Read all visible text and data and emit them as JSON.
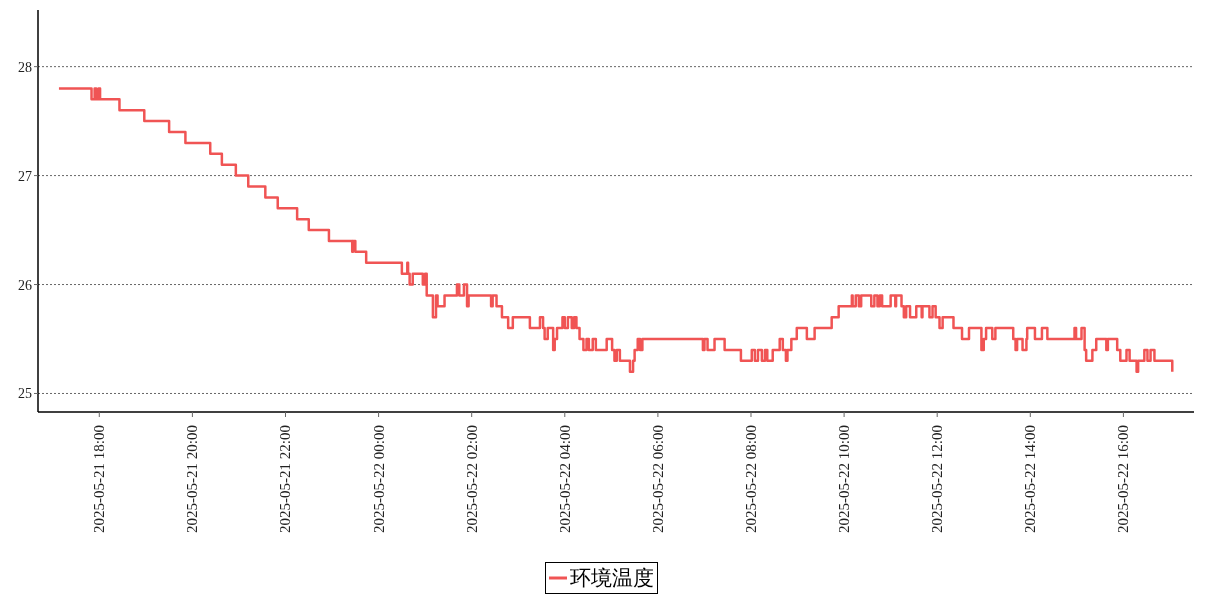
{
  "chart_data": {
    "type": "step",
    "legend": "bottom",
    "grid": "y",
    "xlim": [
      "2025-05-21T16:41",
      "2025-05-22T17:31"
    ],
    "xticks": [
      {
        "value": "2025-05-21T18:00",
        "label": "2025-05-21 18:00"
      },
      {
        "value": "2025-05-21T20:00",
        "label": "2025-05-21 20:00"
      },
      {
        "value": "2025-05-21T22:00",
        "label": "2025-05-21 22:00"
      },
      {
        "value": "2025-05-22T00:00",
        "label": "2025-05-22 00:00"
      },
      {
        "value": "2025-05-22T02:00",
        "label": "2025-05-22 02:00"
      },
      {
        "value": "2025-05-22T04:00",
        "label": "2025-05-22 04:00"
      },
      {
        "value": "2025-05-22T06:00",
        "label": "2025-05-22 06:00"
      },
      {
        "value": "2025-05-22T08:00",
        "label": "2025-05-22 08:00"
      },
      {
        "value": "2025-05-22T10:00",
        "label": "2025-05-22 10:00"
      },
      {
        "value": "2025-05-22T12:00",
        "label": "2025-05-22 12:00"
      },
      {
        "value": "2025-05-22T14:00",
        "label": "2025-05-22 14:00"
      },
      {
        "value": "2025-05-22T16:00",
        "label": "2025-05-22 16:00"
      }
    ],
    "ylim": [
      24.83,
      28.52
    ],
    "yticks": [
      25,
      26,
      27,
      28
    ],
    "series": [
      {
        "name": "环境温度",
        "color": "#f05454",
        "x": [
          "2025-05-21T17:08",
          "2025-05-21T17:50",
          "2025-05-21T17:54",
          "2025-05-21T17:56",
          "2025-05-21T17:59",
          "2025-05-21T18:01",
          "2025-05-21T18:26",
          "2025-05-21T18:58",
          "2025-05-21T19:30",
          "2025-05-21T19:51",
          "2025-05-21T20:23",
          "2025-05-21T20:38",
          "2025-05-21T20:56",
          "2025-05-21T21:12",
          "2025-05-21T21:34",
          "2025-05-21T21:50",
          "2025-05-21T22:15",
          "2025-05-21T22:30",
          "2025-05-21T22:56",
          "2025-05-21T23:26",
          "2025-05-21T23:27",
          "2025-05-21T23:30",
          "2025-05-21T23:44",
          "2025-05-22T00:30",
          "2025-05-22T00:37",
          "2025-05-22T00:38",
          "2025-05-22T00:40",
          "2025-05-22T00:44",
          "2025-05-22T00:57",
          "2025-05-22T01:00",
          "2025-05-22T01:02",
          "2025-05-22T01:10",
          "2025-05-22T01:14",
          "2025-05-22T01:16",
          "2025-05-22T01:25",
          "2025-05-22T01:41",
          "2025-05-22T01:44",
          "2025-05-22T01:50",
          "2025-05-22T01:54",
          "2025-05-22T01:56",
          "2025-05-22T02:25",
          "2025-05-22T02:27",
          "2025-05-22T02:32",
          "2025-05-22T02:39",
          "2025-05-22T02:47",
          "2025-05-22T02:53",
          "2025-05-22T03:15",
          "2025-05-22T03:28",
          "2025-05-22T03:32",
          "2025-05-22T03:34",
          "2025-05-22T03:38",
          "2025-05-22T03:45",
          "2025-05-22T03:47",
          "2025-05-22T03:50",
          "2025-05-22T03:57",
          "2025-05-22T04:00",
          "2025-05-22T04:04",
          "2025-05-22T04:09",
          "2025-05-22T04:12",
          "2025-05-22T04:15",
          "2025-05-22T04:19",
          "2025-05-22T04:24",
          "2025-05-22T04:28",
          "2025-05-22T04:31",
          "2025-05-22T04:36",
          "2025-05-22T04:40",
          "2025-05-22T04:54",
          "2025-05-22T05:01",
          "2025-05-22T05:04",
          "2025-05-22T05:07",
          "2025-05-22T05:11",
          "2025-05-22T05:24",
          "2025-05-22T05:28",
          "2025-05-22T05:30",
          "2025-05-22T05:34",
          "2025-05-22T05:37",
          "2025-05-22T05:40",
          "2025-05-22T06:58",
          "2025-05-22T07:00",
          "2025-05-22T07:04",
          "2025-05-22T07:13",
          "2025-05-22T07:26",
          "2025-05-22T07:47",
          "2025-05-22T08:01",
          "2025-05-22T08:05",
          "2025-05-22T08:09",
          "2025-05-22T08:14",
          "2025-05-22T08:18",
          "2025-05-22T08:21",
          "2025-05-22T08:28",
          "2025-05-22T08:37",
          "2025-05-22T08:41",
          "2025-05-22T08:45",
          "2025-05-22T08:47",
          "2025-05-22T08:52",
          "2025-05-22T08:59",
          "2025-05-22T09:12",
          "2025-05-22T09:22",
          "2025-05-22T09:44",
          "2025-05-22T09:53",
          "2025-05-22T10:10",
          "2025-05-22T10:11",
          "2025-05-22T10:15",
          "2025-05-22T10:19",
          "2025-05-22T10:22",
          "2025-05-22T10:35",
          "2025-05-22T10:39",
          "2025-05-22T10:43",
          "2025-05-22T10:46",
          "2025-05-22T10:49",
          "2025-05-22T11:00",
          "2025-05-22T11:06",
          "2025-05-22T11:07",
          "2025-05-22T11:14",
          "2025-05-22T11:17",
          "2025-05-22T11:20",
          "2025-05-22T11:25",
          "2025-05-22T11:33",
          "2025-05-22T11:40",
          "2025-05-22T11:41",
          "2025-05-22T11:50",
          "2025-05-22T11:54",
          "2025-05-22T11:58",
          "2025-05-22T12:03",
          "2025-05-22T12:07",
          "2025-05-22T12:21",
          "2025-05-22T12:32",
          "2025-05-22T12:41",
          "2025-05-22T12:57",
          "2025-05-22T13:00",
          "2025-05-22T13:03",
          "2025-05-22T13:11",
          "2025-05-22T13:15",
          "2025-05-22T13:38",
          "2025-05-22T13:41",
          "2025-05-22T13:43",
          "2025-05-22T13:50",
          "2025-05-22T13:55",
          "2025-05-22T13:56",
          "2025-05-22T14:06",
          "2025-05-22T14:15",
          "2025-05-22T14:22",
          "2025-05-22T14:57",
          "2025-05-22T14:59",
          "2025-05-22T15:06",
          "2025-05-22T15:10",
          "2025-05-22T15:12",
          "2025-05-22T15:20",
          "2025-05-22T15:25",
          "2025-05-22T15:38",
          "2025-05-22T15:40",
          "2025-05-22T15:52",
          "2025-05-22T15:56",
          "2025-05-22T16:04",
          "2025-05-22T16:08",
          "2025-05-22T16:17",
          "2025-05-22T16:19",
          "2025-05-22T16:27",
          "2025-05-22T16:31",
          "2025-05-22T16:35",
          "2025-05-22T16:40",
          "2025-05-22T17:03"
        ],
        "values": [
          27.8,
          27.7,
          27.8,
          27.7,
          27.8,
          27.7,
          27.6,
          27.5,
          27.4,
          27.3,
          27.2,
          27.1,
          27.0,
          26.9,
          26.8,
          26.7,
          26.6,
          26.5,
          26.4,
          26.3,
          26.4,
          26.3,
          26.2,
          26.1,
          26.2,
          26.1,
          26.0,
          26.1,
          26.0,
          26.1,
          25.9,
          25.7,
          25.9,
          25.8,
          25.9,
          26.0,
          25.9,
          26.0,
          25.8,
          25.9,
          25.8,
          25.9,
          25.8,
          25.7,
          25.6,
          25.7,
          25.6,
          25.7,
          25.6,
          25.5,
          25.6,
          25.4,
          25.5,
          25.6,
          25.7,
          25.6,
          25.7,
          25.6,
          25.7,
          25.6,
          25.5,
          25.4,
          25.5,
          25.4,
          25.5,
          25.4,
          25.5,
          25.4,
          25.3,
          25.4,
          25.3,
          25.2,
          25.3,
          25.4,
          25.5,
          25.4,
          25.5,
          25.4,
          25.5,
          25.4,
          25.5,
          25.4,
          25.3,
          25.4,
          25.3,
          25.4,
          25.3,
          25.4,
          25.3,
          25.4,
          25.5,
          25.4,
          25.3,
          25.4,
          25.5,
          25.6,
          25.5,
          25.6,
          25.7,
          25.8,
          25.9,
          25.8,
          25.9,
          25.8,
          25.9,
          25.8,
          25.9,
          25.8,
          25.9,
          25.8,
          25.9,
          25.8,
          25.9,
          25.8,
          25.7,
          25.8,
          25.7,
          25.8,
          25.7,
          25.8,
          25.7,
          25.8,
          25.7,
          25.6,
          25.7,
          25.6,
          25.5,
          25.6,
          25.4,
          25.5,
          25.6,
          25.5,
          25.6,
          25.5,
          25.4,
          25.5,
          25.4,
          25.5,
          25.6,
          25.5,
          25.6,
          25.5,
          25.6,
          25.5,
          25.6,
          25.4,
          25.3,
          25.4,
          25.5,
          25.4,
          25.5,
          25.4,
          25.3,
          25.4,
          25.3,
          25.2,
          25.3,
          25.4,
          25.3,
          25.4,
          25.3,
          25.2
        ]
      }
    ]
  }
}
